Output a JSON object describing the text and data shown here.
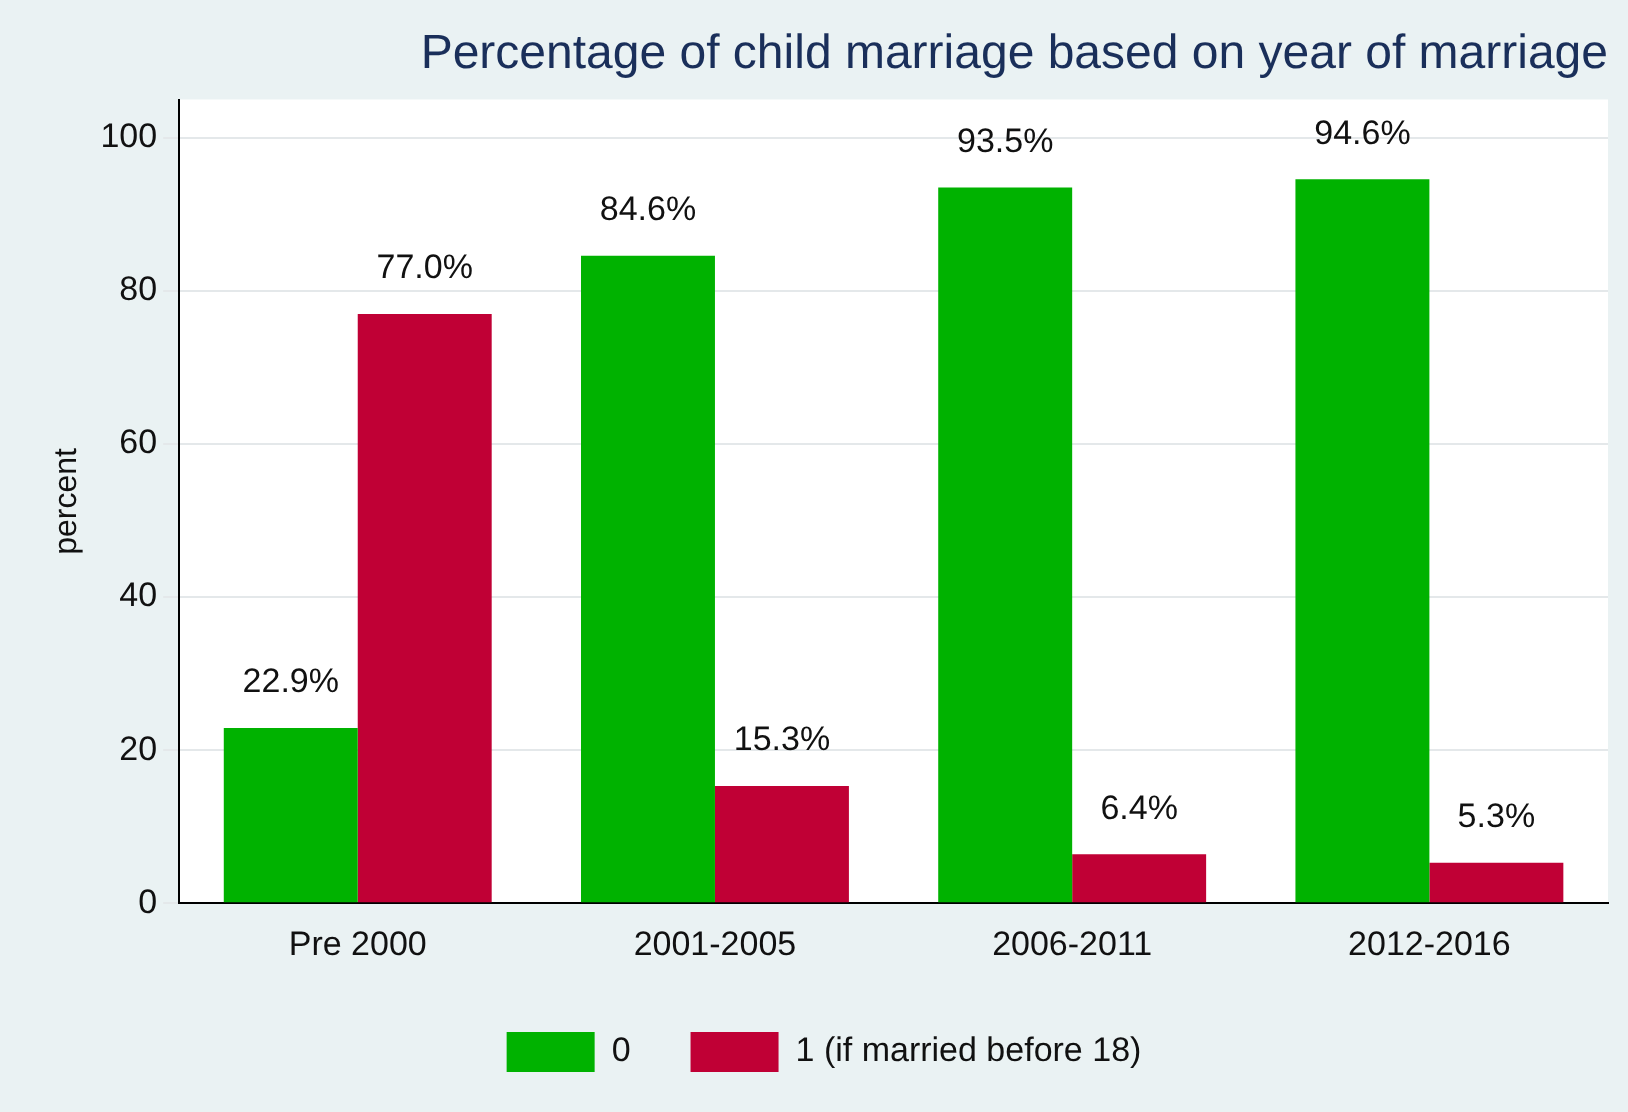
{
  "chart_data": {
    "type": "bar",
    "title": "Percentage of child marriage based on year of marriage",
    "ylabel": "percent",
    "categories": [
      "Pre 2000",
      "2001-2005",
      "2006-2011",
      "2012-2016"
    ],
    "series": [
      {
        "name": "0",
        "color": "#00b200",
        "values": [
          22.9,
          84.6,
          93.5,
          94.6
        ],
        "value_labels": [
          "22.9%",
          "84.6%",
          "93.5%",
          "94.6%"
        ]
      },
      {
        "name": "1 (if married before 18)",
        "color": "#c00035",
        "values": [
          77.0,
          15.3,
          6.4,
          5.3
        ],
        "value_labels": [
          "77.0%",
          "15.3%",
          "6.4%",
          "5.3%"
        ]
      }
    ],
    "ylim": [
      0,
      105
    ],
    "yticks": [
      0,
      20,
      40,
      60,
      80,
      100
    ],
    "grid": "y",
    "legend": "bottom"
  }
}
